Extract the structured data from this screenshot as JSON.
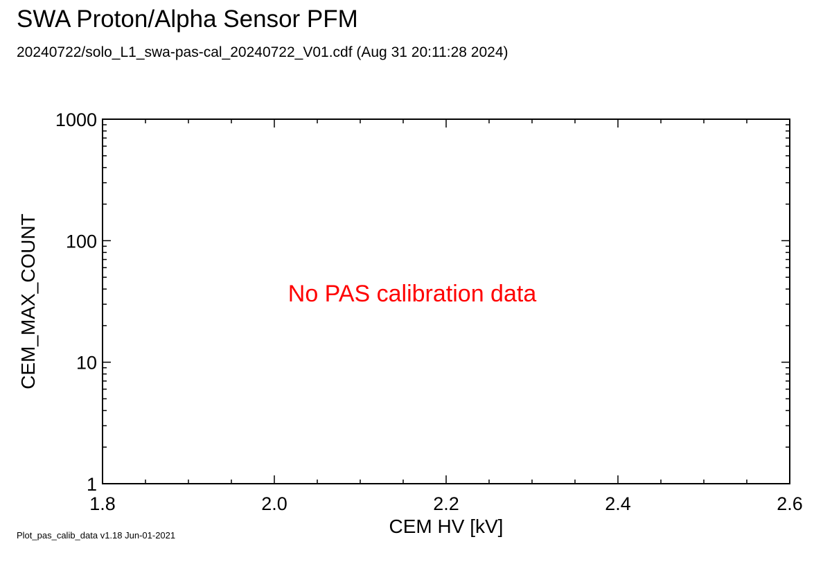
{
  "header": {
    "title": "SWA Proton/Alpha Sensor PFM",
    "subtitle": "20240722/solo_L1_swa-pas-cal_20240722_V01.cdf  (Aug 31 20:11:28 2024)"
  },
  "footer": {
    "version": "Plot_pas_calib_data v1.18 Jun-01-2021"
  },
  "chart_data": {
    "type": "scatter",
    "title": "SWA Proton/Alpha Sensor PFM",
    "xlabel": "CEM HV [kV]",
    "ylabel": "CEM_MAX_COUNT",
    "xlim": [
      1.8,
      2.6
    ],
    "ylim": [
      1,
      1000
    ],
    "yscale": "log",
    "x_ticks": [
      "1.8",
      "2.0",
      "2.2",
      "2.4",
      "2.6"
    ],
    "y_ticks": [
      "1",
      "10",
      "100",
      "1000"
    ],
    "grid": false,
    "series": [],
    "annotation": "No PAS calibration data",
    "annotation_color": "#ff0000"
  }
}
